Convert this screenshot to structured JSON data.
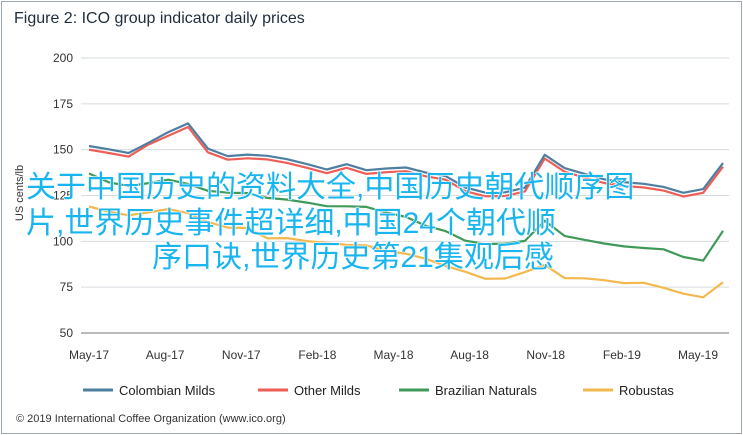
{
  "chart_data": {
    "type": "line",
    "title": "Figure 2: ICO group indicator daily prices",
    "ylabel": "US cents/lb",
    "xlabel": "",
    "ylim": [
      50,
      200
    ],
    "yticks": [
      50,
      75,
      100,
      125,
      150,
      175,
      200
    ],
    "xtick_labels": [
      "May-17",
      "Aug-17",
      "Nov-17",
      "Feb-18",
      "May-18",
      "Aug-18",
      "Nov-18",
      "Feb-19",
      "May-19"
    ],
    "grid": "horizontal",
    "legend_position": "bottom",
    "series": [
      {
        "name": "Colombian Milds",
        "color": "#4e7fa1",
        "values": [
          152,
          151,
          148,
          153,
          160,
          165,
          150,
          146,
          148,
          147,
          144,
          142,
          140,
          142,
          138,
          140,
          141,
          137,
          135,
          130,
          127,
          126,
          129,
          148,
          140,
          136,
          134,
          133,
          131,
          129,
          127,
          129,
          142
        ]
      },
      {
        "name": "Other Milds",
        "color": "#ef5d57",
        "values": [
          150,
          149,
          146,
          152,
          158,
          163,
          148,
          144,
          146,
          145,
          142,
          140,
          138,
          140,
          136,
          138,
          139,
          135,
          133,
          128,
          125,
          124,
          127,
          146,
          138,
          134,
          132,
          131,
          129,
          127,
          125,
          127,
          140
        ]
      },
      {
        "name": "Brazilian Naturals",
        "color": "#3f9a5a",
        "values": [
          137,
          133,
          130,
          131,
          134,
          132,
          127,
          126,
          127,
          124,
          122,
          121,
          120,
          119,
          118,
          116,
          114,
          108,
          105,
          101,
          99,
          98,
          100,
          112,
          103,
          100,
          99,
          98,
          96,
          95,
          92,
          90,
          105
        ]
      },
      {
        "name": "Robustas",
        "color": "#f3b84e",
        "values": [
          119,
          117,
          114,
          115,
          118,
          116,
          110,
          107,
          108,
          102,
          101,
          100,
          100,
          98,
          97,
          95,
          94,
          90,
          86,
          84,
          80,
          79,
          83,
          88,
          80,
          79,
          79,
          78,
          77,
          74,
          72,
          70,
          77
        ]
      }
    ]
  },
  "overlay_text": "关于中国历史的资料大全,中国历史朝代顺序图片,世界历史事件超详细,中国24个朝代顺序口诀,世界历史第21集观后感",
  "footer": "© 2019 International Coffee Organization (www.ico.org)"
}
